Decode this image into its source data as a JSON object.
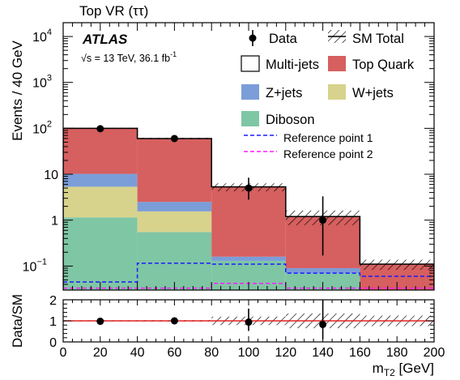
{
  "chart_data": {
    "type": "bar",
    "subtype": "stacked-histogram-with-ratio",
    "title": "Top VR (ττ)",
    "experiment_label": "ATLAS",
    "energy_label": "√s = 13 TeV, 36.1 fb",
    "energy_label_sup": "-1",
    "ylabel": "Events / 40 GeV",
    "xlabel": "m",
    "xlabel_sub": "T2",
    "xlabel_unit": " [GeV]",
    "ratio_ylabel": "Data/SM",
    "x_scale": "linear",
    "y_scale": "log",
    "xlim": [
      0,
      200
    ],
    "ylim": [
      0.03,
      20000
    ],
    "ratio_ylim": [
      0,
      2
    ],
    "bin_edges": [
      0,
      40,
      80,
      120,
      160,
      200
    ],
    "x_ticks": [
      "0",
      "20",
      "40",
      "60",
      "80",
      "100",
      "120",
      "140",
      "160",
      "180",
      "200"
    ],
    "y_ticks": [
      {
        "value": 10000,
        "base": "10",
        "exp": "4"
      },
      {
        "value": 1000,
        "base": "10",
        "exp": "3"
      },
      {
        "value": 100,
        "base": "10",
        "exp": "2"
      },
      {
        "value": 10,
        "base": "10",
        "exp": ""
      },
      {
        "value": 1,
        "base": "1",
        "exp": ""
      },
      {
        "value": 0.1,
        "base": "10",
        "exp": "−1"
      }
    ],
    "ratio_ticks": [
      "0",
      "1",
      "2"
    ],
    "stack": [
      {
        "name": "Diboson",
        "color": "#7fc6a4",
        "values": [
          1.15,
          0.55,
          0.13,
          0.07,
          0.0
        ]
      },
      {
        "name": "W+jets",
        "color": "#d7d38d",
        "values": [
          4.2,
          1.0,
          0.0,
          0.0,
          0.0
        ]
      },
      {
        "name": "Z+jets",
        "color": "#7b9dd8",
        "values": [
          4.85,
          0.95,
          0.03,
          0.02,
          0.0
        ]
      },
      {
        "name": "Multi-jets",
        "color": "#ffffff",
        "values": [
          0.0,
          0.0,
          0.0,
          0.0,
          0.0
        ]
      },
      {
        "name": "Top Quark",
        "color": "#d65f5f",
        "values": [
          89.8,
          57.5,
          5.14,
          1.11,
          0.11
        ]
      }
    ],
    "sm_total": [
      100,
      60,
      5.3,
      1.2,
      0.11
    ],
    "sm_uncertainty_rel": [
      0.03,
      0.04,
      0.2,
      0.35,
      0.25
    ],
    "data": [
      {
        "x": 20,
        "y": 98,
        "err_low": 10,
        "err_high": 11
      },
      {
        "x": 60,
        "y": 60,
        "err_low": 8,
        "err_high": 9
      },
      {
        "x": 100,
        "y": 5,
        "err_low": 2.2,
        "err_high": 3.4
      },
      {
        "x": 140,
        "y": 1,
        "err_low": 0.83,
        "err_high": 2.3
      }
    ],
    "reference_points": [
      {
        "name": "Reference point 1",
        "color": "#1a1aff",
        "values": [
          0.045,
          0.115,
          0.11,
          0.07,
          0.06
        ]
      },
      {
        "name": "Reference point 2",
        "color": "#ff1aff",
        "values": [
          0.033,
          0.033,
          0.042,
          0.033,
          0.033
        ]
      }
    ],
    "ratio": [
      {
        "x": 20,
        "y": 0.98,
        "err_low": 0.1,
        "err_high": 0.11
      },
      {
        "x": 60,
        "y": 1.0,
        "err_low": 0.13,
        "err_high": 0.15
      },
      {
        "x": 100,
        "y": 0.94,
        "err_low": 0.42,
        "err_high": 0.64
      },
      {
        "x": 140,
        "y": 0.83,
        "err_low": 0.7,
        "err_high": 1.9
      }
    ],
    "legend": [
      {
        "label": "Data",
        "kind": "data"
      },
      {
        "label": "SM Total",
        "kind": "hatch"
      },
      {
        "label": "Multi-jets",
        "kind": "fill",
        "color": "#ffffff"
      },
      {
        "label": "Top Quark",
        "kind": "fill",
        "color": "#d65f5f"
      },
      {
        "label": "Z+jets",
        "kind": "fill",
        "color": "#7b9dd8"
      },
      {
        "label": "W+jets",
        "kind": "fill",
        "color": "#d7d38d"
      },
      {
        "label": "Diboson",
        "kind": "fill",
        "color": "#7fc6a4"
      },
      {
        "label": "Reference point 1",
        "kind": "dash",
        "color": "#1a1aff"
      },
      {
        "label": "Reference point 2",
        "kind": "dash",
        "color": "#ff1aff"
      }
    ],
    "legend_placement": "top-right",
    "grid": false
  }
}
